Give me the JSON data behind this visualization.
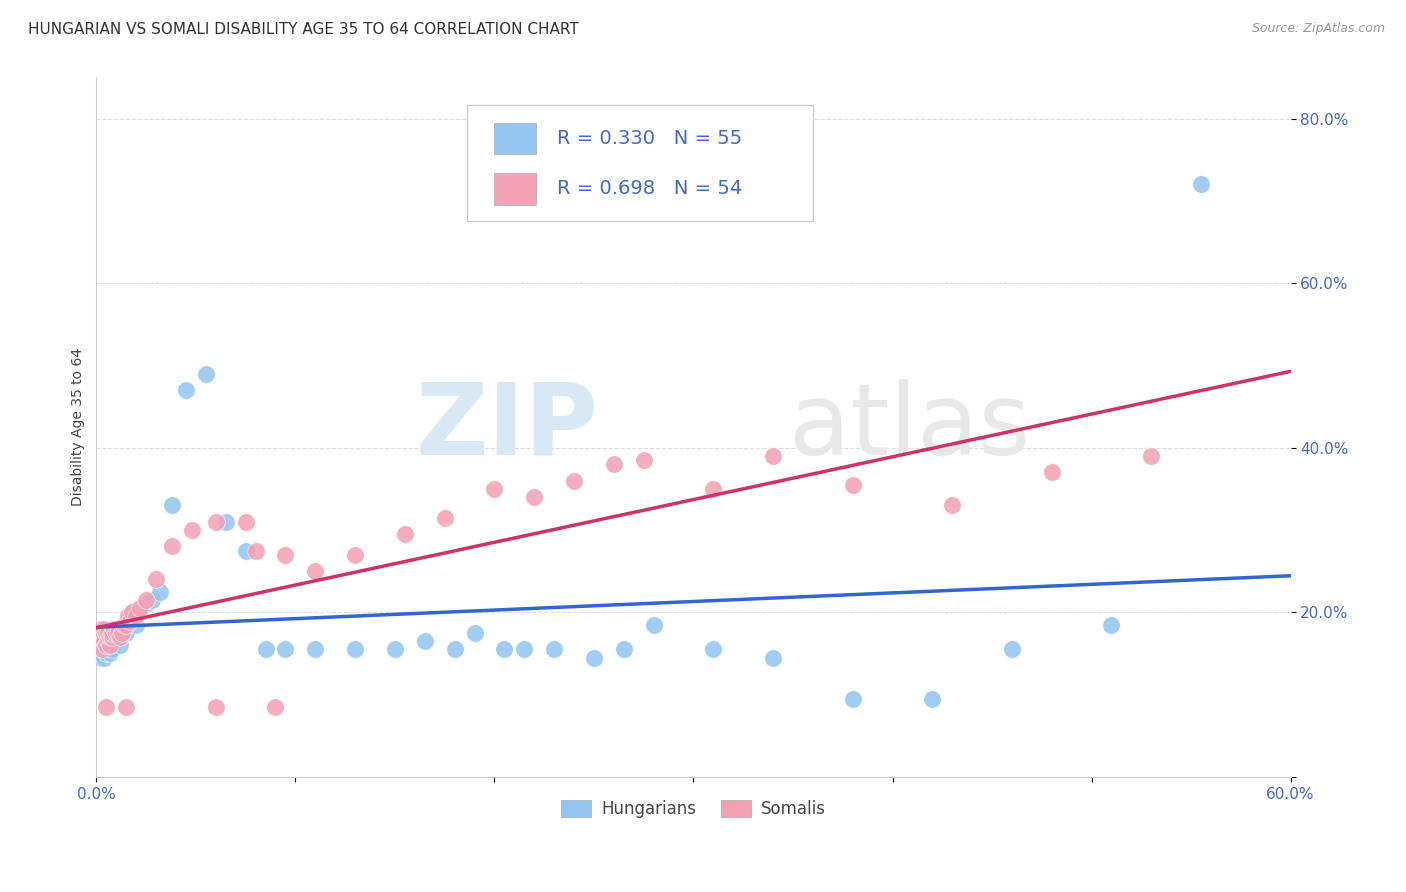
{
  "title": "HUNGARIAN VS SOMALI DISABILITY AGE 35 TO 64 CORRELATION CHART",
  "source": "Source: ZipAtlas.com",
  "ylabel": "Disability Age 35 to 64",
  "xlim": [
    0.0,
    0.6
  ],
  "ylim": [
    0.0,
    0.85
  ],
  "x_ticks": [
    0.0,
    0.1,
    0.2,
    0.3,
    0.4,
    0.5,
    0.6
  ],
  "x_tick_labels": [
    "0.0%",
    "",
    "",
    "",
    "",
    "",
    "60.0%"
  ],
  "y_ticks": [
    0.0,
    0.2,
    0.4,
    0.6,
    0.8
  ],
  "y_tick_labels": [
    "",
    "20.0%",
    "40.0%",
    "60.0%",
    "80.0%"
  ],
  "hungarian_color": "#92C5F0",
  "somali_color": "#F4A0B5",
  "hungarian_line_color": "#3366CC",
  "somali_line_color": "#CC3366",
  "legend_r_hungarian": "R = 0.330",
  "legend_n_hungarian": "N = 55",
  "legend_r_somali": "R = 0.698",
  "legend_n_somali": "N = 54",
  "hungarian_x": [
    0.001,
    0.002,
    0.002,
    0.003,
    0.003,
    0.004,
    0.004,
    0.005,
    0.005,
    0.006,
    0.006,
    0.007,
    0.007,
    0.008,
    0.008,
    0.009,
    0.01,
    0.011,
    0.012,
    0.013,
    0.015,
    0.016,
    0.017,
    0.018,
    0.02,
    0.022,
    0.025,
    0.028,
    0.032,
    0.038,
    0.045,
    0.055,
    0.065,
    0.075,
    0.085,
    0.095,
    0.11,
    0.13,
    0.15,
    0.165,
    0.18,
    0.19,
    0.205,
    0.215,
    0.23,
    0.25,
    0.265,
    0.28,
    0.31,
    0.34,
    0.38,
    0.42,
    0.46,
    0.51,
    0.555
  ],
  "hungarian_y": [
    0.155,
    0.145,
    0.165,
    0.15,
    0.17,
    0.145,
    0.16,
    0.15,
    0.165,
    0.155,
    0.17,
    0.15,
    0.165,
    0.16,
    0.155,
    0.175,
    0.165,
    0.17,
    0.16,
    0.175,
    0.175,
    0.185,
    0.195,
    0.2,
    0.185,
    0.2,
    0.21,
    0.215,
    0.225,
    0.33,
    0.47,
    0.49,
    0.31,
    0.275,
    0.155,
    0.155,
    0.155,
    0.155,
    0.155,
    0.165,
    0.155,
    0.175,
    0.155,
    0.155,
    0.155,
    0.145,
    0.155,
    0.185,
    0.155,
    0.145,
    0.095,
    0.095,
    0.155,
    0.185,
    0.72
  ],
  "somali_x": [
    0.001,
    0.002,
    0.002,
    0.003,
    0.003,
    0.004,
    0.004,
    0.005,
    0.005,
    0.006,
    0.006,
    0.007,
    0.007,
    0.008,
    0.008,
    0.009,
    0.01,
    0.011,
    0.012,
    0.013,
    0.014,
    0.015,
    0.016,
    0.017,
    0.018,
    0.02,
    0.022,
    0.025,
    0.03,
    0.038,
    0.048,
    0.06,
    0.075,
    0.095,
    0.11,
    0.13,
    0.155,
    0.175,
    0.2,
    0.24,
    0.275,
    0.31,
    0.34,
    0.38,
    0.43,
    0.48,
    0.53,
    0.08,
    0.22,
    0.26,
    0.005,
    0.015,
    0.06,
    0.09
  ],
  "somali_y": [
    0.16,
    0.17,
    0.18,
    0.155,
    0.175,
    0.165,
    0.18,
    0.16,
    0.175,
    0.165,
    0.175,
    0.16,
    0.17,
    0.17,
    0.175,
    0.18,
    0.175,
    0.175,
    0.17,
    0.175,
    0.185,
    0.185,
    0.195,
    0.19,
    0.2,
    0.195,
    0.205,
    0.215,
    0.24,
    0.28,
    0.3,
    0.31,
    0.31,
    0.27,
    0.25,
    0.27,
    0.295,
    0.315,
    0.35,
    0.36,
    0.385,
    0.35,
    0.39,
    0.355,
    0.33,
    0.37,
    0.39,
    0.275,
    0.34,
    0.38,
    0.085,
    0.085,
    0.085,
    0.085
  ],
  "watermark_zip": "ZIP",
  "watermark_atlas": "atlas",
  "background_color": "#FFFFFF",
  "grid_color": "#DDDDDD",
  "title_fontsize": 11,
  "axis_label_fontsize": 10,
  "tick_fontsize": 11,
  "legend_fontsize": 14,
  "tick_color": "#4466CC"
}
